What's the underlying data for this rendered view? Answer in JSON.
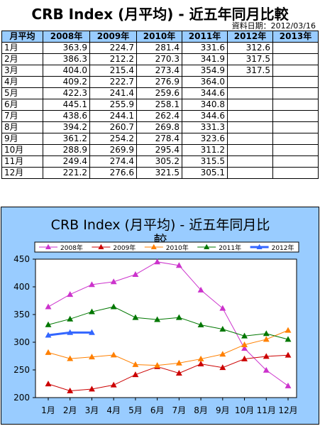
{
  "page": {
    "title": "CRB Index (月平均) - 近五年同月比較",
    "source": "資料日期：2012/03/16"
  },
  "table": {
    "headers": [
      "月平均",
      "2008年",
      "2009年",
      "2010年",
      "2011年",
      "2012年",
      "2013年"
    ],
    "rows": [
      [
        "1月",
        "363.9",
        "224.7",
        "281.4",
        "331.6",
        "312.6",
        ""
      ],
      [
        "2月",
        "386.3",
        "212.2",
        "270.3",
        "341.9",
        "317.5",
        ""
      ],
      [
        "3月",
        "404.0",
        "215.4",
        "273.4",
        "354.9",
        "317.5",
        ""
      ],
      [
        "4月",
        "409.2",
        "222.7",
        "276.9",
        "364.0",
        "",
        ""
      ],
      [
        "5月",
        "422.3",
        "241.4",
        "259.6",
        "344.6",
        "",
        ""
      ],
      [
        "6月",
        "445.1",
        "255.9",
        "258.1",
        "340.8",
        "",
        ""
      ],
      [
        "7月",
        "438.6",
        "244.1",
        "262.4",
        "344.6",
        "",
        ""
      ],
      [
        "8月",
        "394.2",
        "260.7",
        "269.8",
        "331.3",
        "",
        ""
      ],
      [
        "9月",
        "361.2",
        "254.2",
        "278.4",
        "323.6",
        "",
        ""
      ],
      [
        "10月",
        "288.9",
        "269.9",
        "295.4",
        "311.2",
        "",
        ""
      ],
      [
        "11月",
        "249.4",
        "274.4",
        "305.2",
        "315.5",
        "",
        ""
      ],
      [
        "12月",
        "221.2",
        "276.6",
        "321.5",
        "305.1",
        "",
        ""
      ]
    ]
  },
  "chart_data": {
    "type": "line",
    "title": "CRB Index (月平均) - 近五年同月比較",
    "xlabel": "",
    "ylabel": "",
    "categories": [
      "1月",
      "2月",
      "3月",
      "4月",
      "5月",
      "6月",
      "7月",
      "8月",
      "9月",
      "10月",
      "11月",
      "12月"
    ],
    "ylim": [
      200,
      450
    ],
    "yticks": [
      200,
      250,
      300,
      350,
      400,
      450
    ],
    "grid": false,
    "legend": "top",
    "series": [
      {
        "name": "2008年",
        "color": "#cc33cc",
        "marker": "triangle",
        "width": 1,
        "values": [
          363.9,
          386.3,
          404.0,
          409.2,
          422.3,
          445.1,
          438.6,
          394.2,
          361.2,
          288.9,
          249.4,
          221.2
        ]
      },
      {
        "name": "2009年",
        "color": "#cc0000",
        "marker": "triangle",
        "width": 1,
        "values": [
          224.7,
          212.2,
          215.4,
          222.7,
          241.4,
          255.9,
          244.1,
          260.7,
          254.2,
          269.9,
          274.4,
          276.6
        ]
      },
      {
        "name": "2010年",
        "color": "#ff8000",
        "marker": "triangle",
        "width": 1,
        "values": [
          281.4,
          270.3,
          273.4,
          276.9,
          259.6,
          258.1,
          262.4,
          269.8,
          278.4,
          295.4,
          305.2,
          321.5
        ]
      },
      {
        "name": "2011年",
        "color": "#007700",
        "marker": "triangle",
        "width": 1,
        "values": [
          331.6,
          341.9,
          354.9,
          364.0,
          344.6,
          340.8,
          344.6,
          331.3,
          323.6,
          311.2,
          315.5,
          305.1
        ]
      },
      {
        "name": "2012年",
        "color": "#3366ff",
        "marker": "triangle",
        "width": 3,
        "values": [
          312.6,
          317.5,
          317.5,
          null,
          null,
          null,
          null,
          null,
          null,
          null,
          null,
          null
        ]
      }
    ]
  }
}
